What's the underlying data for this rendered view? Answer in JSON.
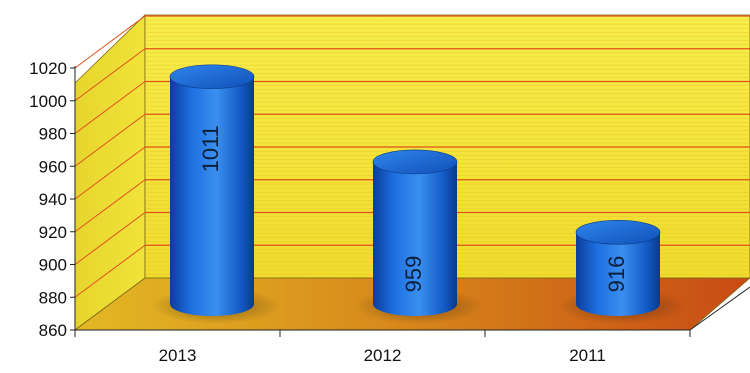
{
  "chart_data": {
    "type": "bar",
    "style": "3d-cylinder",
    "title": "",
    "xlabel": "",
    "ylabel": "",
    "categories": [
      "2013",
      "2012",
      "2011"
    ],
    "values": [
      1011,
      959,
      916
    ],
    "data_labels": [
      "1011",
      "959",
      "916"
    ],
    "ylim": [
      860,
      1020
    ],
    "yticks": [
      "860",
      "880",
      "900",
      "920",
      "940",
      "960",
      "980",
      "1000",
      "1020"
    ],
    "grid": true,
    "legend": "none",
    "colors": {
      "bar": "#1e6fd0",
      "back_wall": "#f3e63a",
      "side_wall": "#e9d830",
      "floor": "#d9921c",
      "gridline": "#e0521a"
    }
  }
}
